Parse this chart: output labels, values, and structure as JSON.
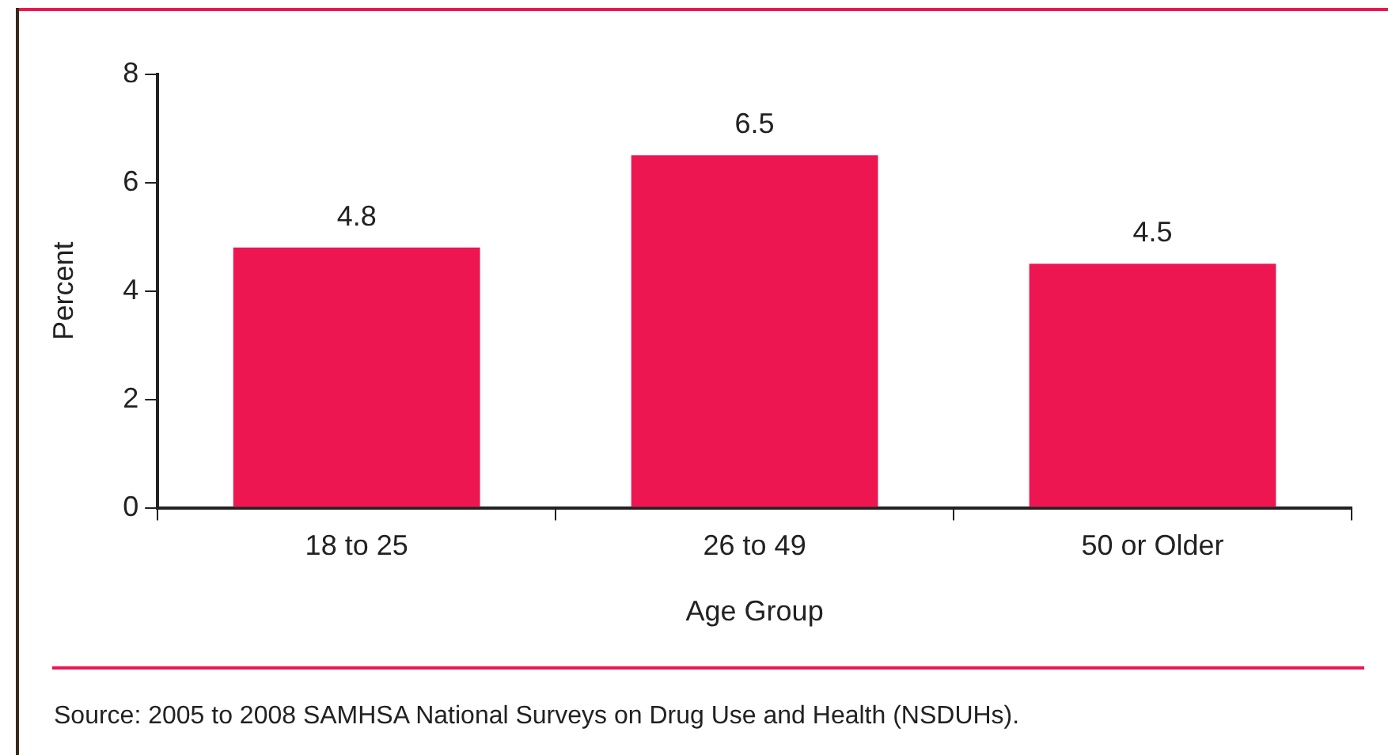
{
  "chart_data": {
    "type": "bar",
    "categories": [
      "18 to 25",
      "26 to 49",
      "50 or Older"
    ],
    "values": [
      4.8,
      6.5,
      4.5
    ],
    "color": "#ed1651",
    "ylim": [
      0,
      8
    ],
    "yticks": [
      0,
      2,
      4,
      6,
      8
    ],
    "xlabel": "Age Group",
    "ylabel": "Percent",
    "data_labels": true,
    "grid": false,
    "legend": false,
    "annotations": [
      "Source: 2005 to 2008 SAMHSA National Surveys on Drug Use and Health (NSDUHs)."
    ]
  }
}
